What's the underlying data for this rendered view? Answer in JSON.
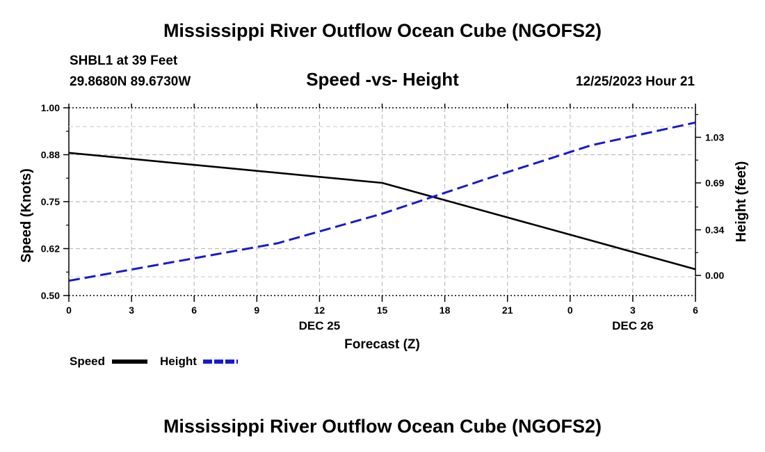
{
  "page_title": "Mississippi River Outflow Ocean Cube (NGOFS2)",
  "station": {
    "name_line": "SHBL1 at 39 Feet",
    "coords_line": "29.8680N  89.6730W",
    "datetime": "12/25/2023 Hour 21"
  },
  "footer_title": "Mississippi River Outflow Ocean Cube (NGOFS2)",
  "legend": [
    {
      "label": "Speed",
      "color": "#000000",
      "style": "solid"
    },
    {
      "label": "Height",
      "color": "#1a1acc",
      "style": "dashed"
    }
  ],
  "chart_data": {
    "type": "line",
    "title": "Speed -vs- Height",
    "xlabel": "Forecast (Z)",
    "ylabel": "Speed (Knots)",
    "y2label": "Height (feet)",
    "x_tick_labels": [
      "0",
      "3",
      "6",
      "9",
      "12",
      "15",
      "18",
      "21",
      "0",
      "3",
      "6"
    ],
    "x_date_labels": [
      {
        "label": "DEC 25",
        "at_hour": 12
      },
      {
        "label": "DEC 26",
        "at_hour": 27
      }
    ],
    "x": [
      0,
      15,
      30
    ],
    "xlim": [
      0,
      30
    ],
    "ylim": [
      0.5,
      1.0
    ],
    "y_ticks": [
      "0.50",
      "0.62",
      "0.75",
      "0.88",
      "1.00"
    ],
    "y2lim": [
      -0.15,
      1.25
    ],
    "y2_ticks": [
      "0.00",
      "0.34",
      "0.69",
      "1.03"
    ],
    "grid": true,
    "series": [
      {
        "name": "Speed",
        "axis": "left",
        "color": "#000000",
        "dashed": false,
        "points": [
          [
            0,
            0.88
          ],
          [
            15,
            0.8
          ],
          [
            30,
            0.57
          ]
        ]
      },
      {
        "name": "Height",
        "axis": "right",
        "color": "#1a1acc",
        "dashed": true,
        "points": [
          [
            0,
            -0.04
          ],
          [
            5,
            0.1
          ],
          [
            10,
            0.24
          ],
          [
            15,
            0.46
          ],
          [
            20,
            0.72
          ],
          [
            25,
            0.97
          ],
          [
            30,
            1.14
          ]
        ]
      }
    ]
  }
}
